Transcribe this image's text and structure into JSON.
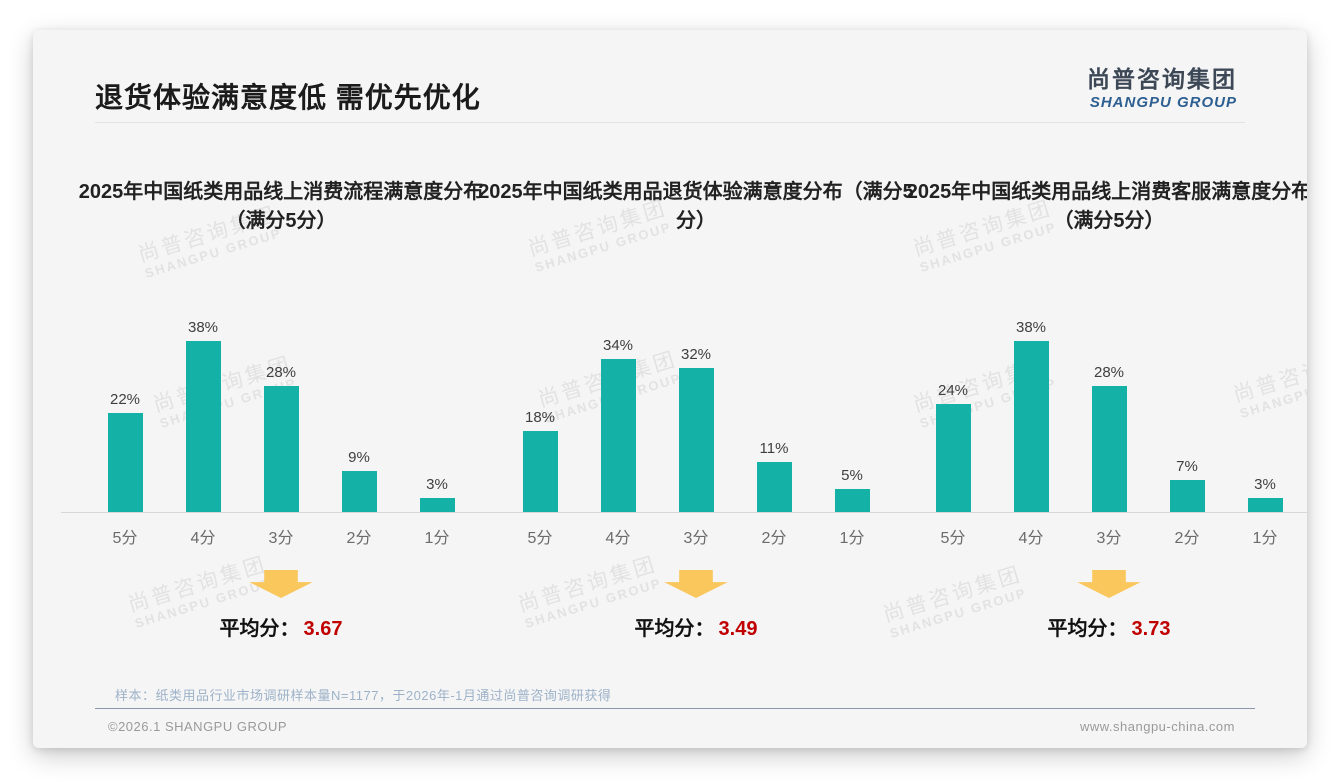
{
  "slide": {
    "title": "退货体验满意度低 需优先优化",
    "logo": {
      "cn": "尚普咨询集团",
      "en": "SHANGPU GROUP"
    },
    "watermark": {
      "cn": "尚普咨询集团",
      "en": "SHANGPU GROUP"
    },
    "footnote": "样本：纸类用品行业市场调研样本量N=1177，于2026年-1月通过尚普咨询调研获得",
    "copyright": "©2026.1 SHANGPU GROUP",
    "website": "www.shangpu-china.com"
  },
  "colors": {
    "bar": "#14b1a6",
    "arrow": "#f9c75c",
    "avg_value": "#c00000",
    "logo_en": "#2d5f91"
  },
  "chart_data": [
    {
      "type": "bar",
      "title": "2025年中国纸类用品线上消费流程满意度分布（满分5分）",
      "categories": [
        "5分",
        "4分",
        "3分",
        "2分",
        "1分"
      ],
      "values": [
        22,
        38,
        28,
        9,
        3
      ],
      "value_labels": [
        "22%",
        "38%",
        "28%",
        "9%",
        "3%"
      ],
      "unit": "%",
      "ylim": [
        0,
        40
      ],
      "grid": false,
      "average_label": "平均分：",
      "average": "3.67"
    },
    {
      "type": "bar",
      "title": "2025年中国纸类用品退货体验满意度分布（满分5分）",
      "categories": [
        "5分",
        "4分",
        "3分",
        "2分",
        "1分"
      ],
      "values": [
        18,
        34,
        32,
        11,
        5
      ],
      "value_labels": [
        "18%",
        "34%",
        "32%",
        "11%",
        "5%"
      ],
      "unit": "%",
      "ylim": [
        0,
        40
      ],
      "grid": false,
      "average_label": "平均分：",
      "average": "3.49"
    },
    {
      "type": "bar",
      "title": "2025年中国纸类用品线上消费客服满意度分布（满分5分）",
      "categories": [
        "5分",
        "4分",
        "3分",
        "2分",
        "1分"
      ],
      "values": [
        24,
        38,
        28,
        7,
        3
      ],
      "value_labels": [
        "24%",
        "38%",
        "28%",
        "7%",
        "3%"
      ],
      "unit": "%",
      "ylim": [
        0,
        40
      ],
      "grid": false,
      "average_label": "平均分：",
      "average": "3.73"
    }
  ]
}
